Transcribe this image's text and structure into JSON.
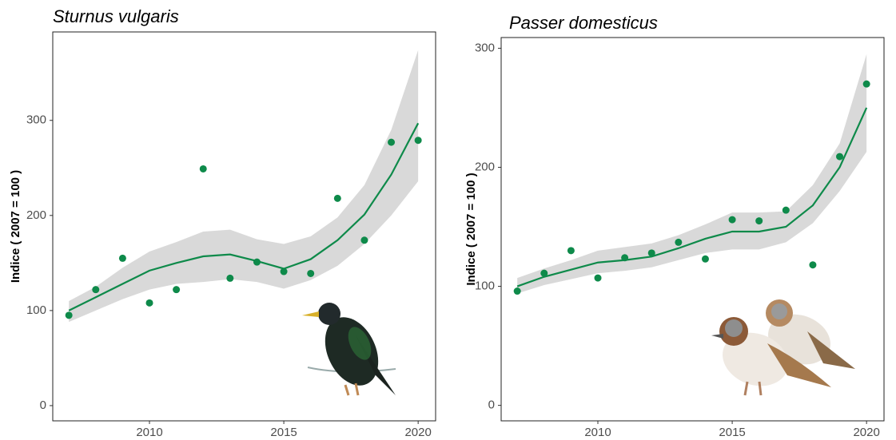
{
  "chart_data": [
    {
      "type": "scatter-fit",
      "title": "Sturnus vulgaris",
      "y_label": "Indice ( 2007 = 100 )",
      "x": [
        2007,
        2008,
        2009,
        2010,
        2011,
        2012,
        2013,
        2014,
        2015,
        2016,
        2017,
        2018,
        2019,
        2020
      ],
      "points": [
        95,
        122,
        155,
        108,
        122,
        249,
        134,
        151,
        141,
        139,
        218,
        174,
        277,
        279
      ],
      "fit": [
        100,
        114,
        128,
        142,
        150,
        157,
        159,
        152,
        144,
        154,
        174,
        201,
        243,
        297
      ],
      "lower": [
        88,
        100,
        112,
        122,
        128,
        130,
        133,
        130,
        123,
        132,
        147,
        170,
        200,
        236
      ],
      "upper": [
        110,
        125,
        145,
        162,
        172,
        183,
        185,
        175,
        170,
        178,
        198,
        232,
        290,
        374
      ],
      "color": "#0e8a4a",
      "band_color": "#d9d9d9",
      "xlim": [
        2006.4,
        2020.65
      ],
      "xticks": [
        2010,
        2015,
        2020
      ],
      "ylim": [
        -16,
        393
      ],
      "yticks": [
        0,
        100,
        200,
        300
      ]
    },
    {
      "type": "scatter-fit",
      "title": "Passer domesticus",
      "y_label": "Indice ( 2007 = 100 )",
      "x": [
        2007,
        2008,
        2009,
        2010,
        2011,
        2012,
        2013,
        2014,
        2015,
        2016,
        2017,
        2018,
        2019,
        2020
      ],
      "points": [
        96,
        111,
        130,
        107,
        124,
        128,
        137,
        123,
        156,
        155,
        164,
        118,
        209,
        270
      ],
      "fit": [
        100,
        108,
        114,
        120,
        122,
        125,
        132,
        140,
        146,
        146,
        150,
        168,
        200,
        250
      ],
      "lower": [
        94,
        101,
        106,
        111,
        113,
        116,
        122,
        128,
        131,
        131,
        137,
        153,
        180,
        213
      ],
      "upper": [
        107,
        115,
        122,
        130,
        133,
        136,
        143,
        152,
        162,
        162,
        163,
        185,
        220,
        295
      ],
      "color": "#0e8a4a",
      "band_color": "#d9d9d9",
      "xlim": [
        2006.4,
        2020.65
      ],
      "xticks": [
        2010,
        2015,
        2020
      ],
      "ylim": [
        -13,
        309
      ],
      "yticks": [
        0,
        100,
        200,
        300
      ]
    }
  ]
}
